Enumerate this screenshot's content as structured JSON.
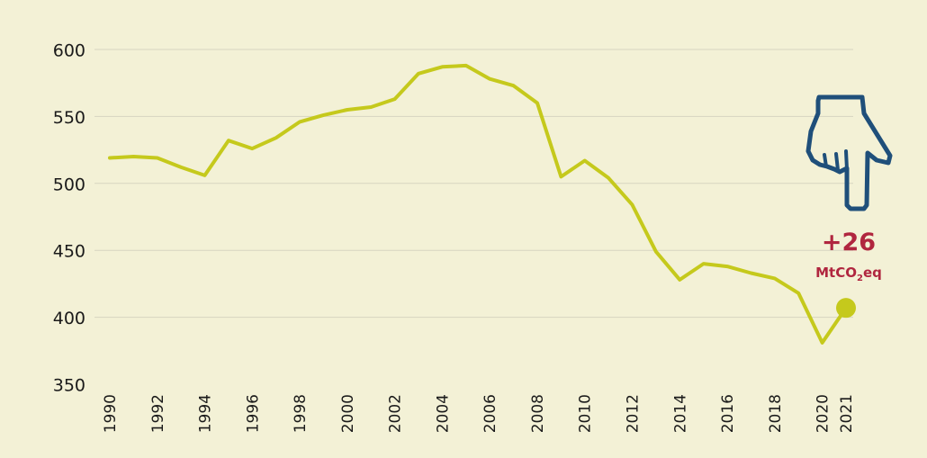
{
  "chart_data": {
    "type": "line",
    "title": "",
    "xlabel": "",
    "ylabel": "",
    "ylim": [
      350,
      600
    ],
    "yticks": [
      "350",
      "400",
      "450",
      "500",
      "550",
      "600"
    ],
    "xticks": [
      "1990",
      "1992",
      "1994",
      "1996",
      "1998",
      "2000",
      "2002",
      "2004",
      "2006",
      "2008",
      "2010",
      "2012",
      "2014",
      "2016",
      "2018",
      "2020",
      "2021"
    ],
    "grid": true,
    "x": [
      1990,
      1991,
      1992,
      1993,
      1994,
      1995,
      1996,
      1997,
      1998,
      1999,
      2000,
      2001,
      2002,
      2003,
      2004,
      2005,
      2006,
      2007,
      2008,
      2009,
      2010,
      2011,
      2012,
      2013,
      2014,
      2015,
      2016,
      2017,
      2018,
      2019,
      2020,
      2021
    ],
    "series": [
      {
        "values": [
          519,
          520,
          519,
          512,
          506,
          532,
          526,
          534,
          546,
          551,
          555,
          557,
          563,
          582,
          587,
          588,
          578,
          573,
          560,
          505,
          517,
          504,
          484,
          449,
          428,
          440,
          438,
          433,
          429,
          418,
          381,
          407
        ],
        "color": "#c5c91c"
      }
    ],
    "highlight_point": {
      "x": 2021,
      "y": 407,
      "color": "#c5c91c"
    },
    "annotation": {
      "value": "+26",
      "unit_prefix": "MtCO",
      "unit_subscript": "2",
      "unit_suffix": "eq",
      "color": "#b0263f",
      "icon": "pointing-down-hand-icon",
      "icon_color": "#1f4f7a"
    }
  }
}
